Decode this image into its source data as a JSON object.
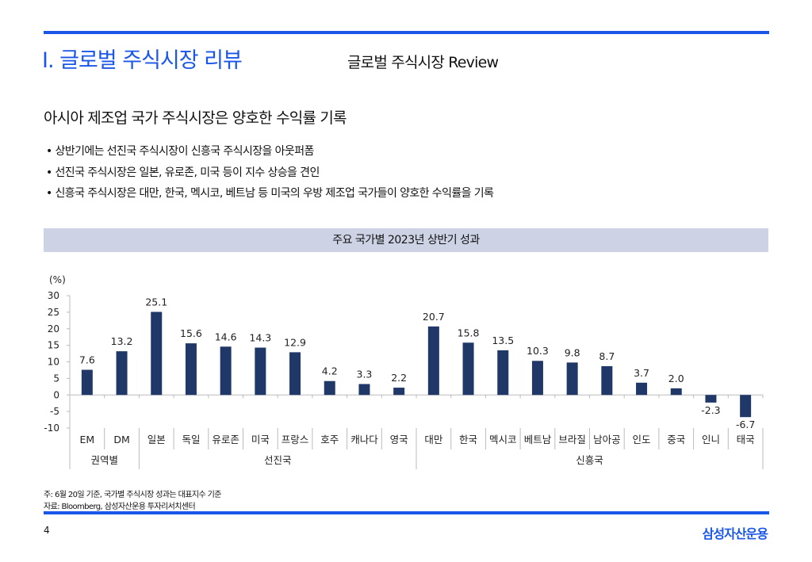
{
  "header": {
    "title": "I. 글로벌 주식시장 리뷰",
    "subtitle": "글로벌 주식시장 Review"
  },
  "headline": "아시아 제조업 국가 주식시장은 양호한 수익률 기록",
  "bullets": [
    "상반기에는 선진국 주식시장이 신흥국 주식시장을 아웃퍼폼",
    "선진국 주식시장은 일본, 유로존, 미국 등이 지수 상승을 견인",
    "신흥국 주식시장은 대만, 한국, 멕시코, 베트남 등 미국의 우방 제조업 국가들이 양호한 수익률을 기록"
  ],
  "chart_data": {
    "type": "bar",
    "title": "주요 국가별 2023년 상반기 성과",
    "ylabel": "(%)",
    "xlabel": "",
    "ylim": [
      -10,
      30
    ],
    "yticks": [
      30,
      25,
      20,
      15,
      10,
      5,
      0,
      -5,
      -10
    ],
    "categories": [
      "EM",
      "DM",
      "일본",
      "독일",
      "유로존",
      "미국",
      "프랑스",
      "호주",
      "캐나다",
      "영국",
      "대만",
      "한국",
      "멕시코",
      "베트남",
      "브라질",
      "남아공",
      "인도",
      "중국",
      "인니",
      "태국"
    ],
    "values": [
      7.6,
      13.2,
      25.1,
      15.6,
      14.6,
      14.3,
      12.9,
      4.2,
      3.3,
      2.2,
      20.7,
      15.8,
      13.5,
      10.3,
      9.8,
      8.7,
      3.7,
      2.0,
      -2.3,
      -6.7
    ],
    "value_labels": [
      "7.6",
      "13.2",
      "25.1",
      "15.6",
      "14.6",
      "14.3",
      "12.9",
      "4.2",
      "3.3",
      "2.2",
      "20.7",
      "15.8",
      "13.5",
      "10.3",
      "9.8",
      "8.7",
      "3.7",
      "2.0",
      "-2.3",
      "-6.7"
    ],
    "groups": [
      {
        "label": "권역별",
        "start": 0,
        "end": 1
      },
      {
        "label": "선진국",
        "start": 2,
        "end": 9
      },
      {
        "label": "신흥국",
        "start": 10,
        "end": 19
      }
    ],
    "bar_color": "#1f3868",
    "grid": false
  },
  "footnotes": {
    "note": "주: 6월 20일 기준, 국가별 주식시장 성과는 대표지수 기준",
    "source": "자료: Bloomberg, 삼성자산운용 투자리서치센터"
  },
  "footer": {
    "page": "4",
    "brand": "삼성자산운용"
  },
  "colors": {
    "accent": "#1a56e8",
    "chart_header_bg": "#cdd3e4"
  }
}
